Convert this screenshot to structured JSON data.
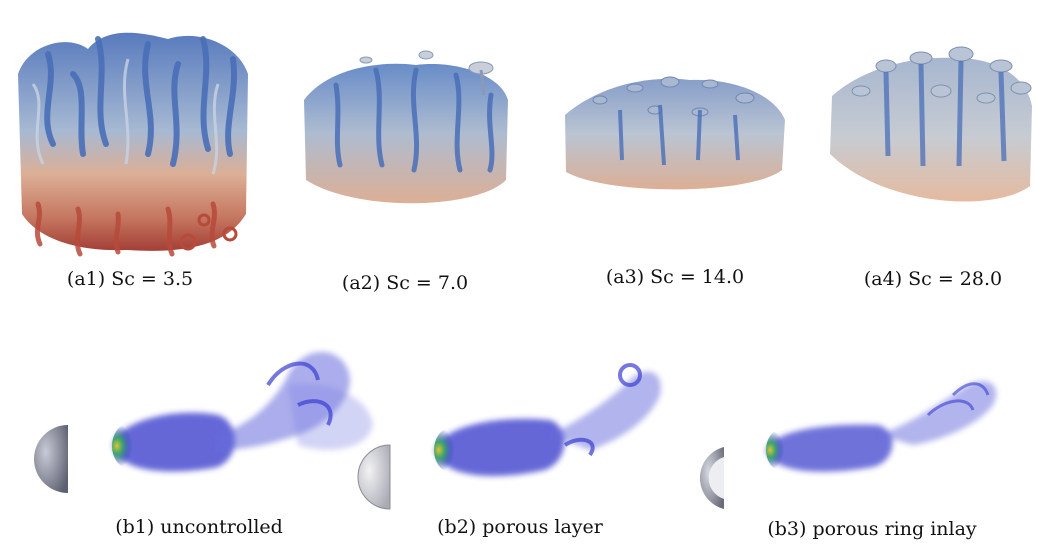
{
  "top_row": {
    "panels": [
      {
        "caption": "(a1) Sc = 3.5"
      },
      {
        "caption": "(a2) Sc = 7.0"
      },
      {
        "caption": "(a3) Sc = 14.0"
      },
      {
        "caption": "(a4) Sc = 28.0"
      }
    ]
  },
  "bottom_row": {
    "panels": [
      {
        "caption": "(b1) uncontrolled"
      },
      {
        "caption": "(b2) porous layer"
      },
      {
        "caption": "(b3) porous ring inlay"
      }
    ]
  },
  "colors": {
    "plume_blue": "#5b82c4",
    "plume_tan": "#d9a88c",
    "plume_red": "#b84a3a",
    "wake_blue": "#2a30c8",
    "wake_green": "#3ea86a",
    "wake_yellow": "#d8c23a",
    "hemisphere_gray": "#8a8c98"
  }
}
